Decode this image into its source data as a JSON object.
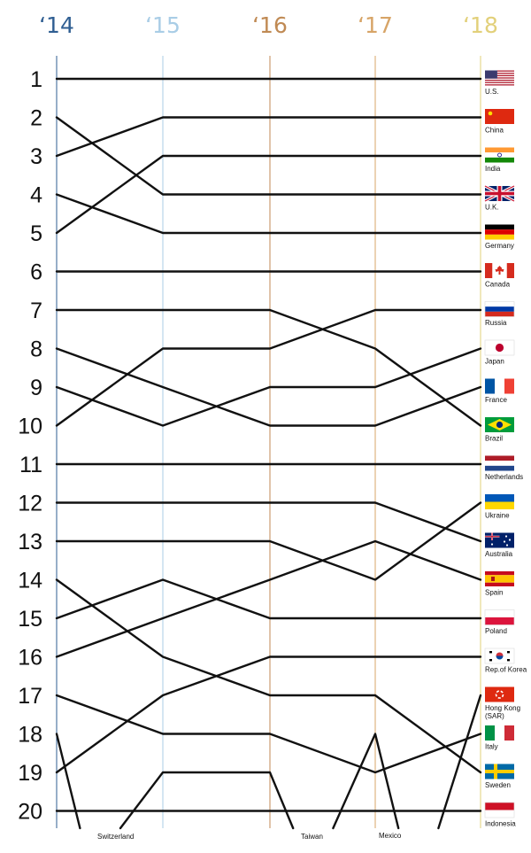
{
  "chart_data": {
    "type": "line",
    "subtype": "bump",
    "title": "",
    "xlabel": "",
    "ylabel": "",
    "x": [
      "2014",
      "2015",
      "2016",
      "2017",
      "2018"
    ],
    "year_labels": [
      "‘14",
      "‘15",
      "‘16",
      "‘17",
      "‘18"
    ],
    "year_colors": [
      "#2f5e92",
      "#a9cde6",
      "#c08a54",
      "#d7a467",
      "#e2d07a"
    ],
    "y_ticks": [
      1,
      2,
      3,
      4,
      5,
      6,
      7,
      8,
      9,
      10,
      11,
      12,
      13,
      14,
      15,
      16,
      17,
      18,
      19,
      20
    ],
    "ylim": [
      1,
      20
    ],
    "y_reversed": true,
    "grid": false,
    "series": [
      {
        "name": "U.S.",
        "flag": "us",
        "values": [
          1,
          1,
          1,
          1,
          1
        ]
      },
      {
        "name": "China",
        "flag": "china",
        "values": [
          3,
          2,
          2,
          2,
          2
        ]
      },
      {
        "name": "India",
        "flag": "india",
        "values": [
          5,
          3,
          3,
          3,
          3
        ]
      },
      {
        "name": "U.K.",
        "flag": "uk",
        "values": [
          2,
          4,
          4,
          4,
          4
        ]
      },
      {
        "name": "Germany",
        "flag": "germany",
        "values": [
          4,
          5,
          5,
          5,
          5
        ]
      },
      {
        "name": "Canada",
        "flag": "canada",
        "values": [
          6,
          6,
          6,
          6,
          6
        ]
      },
      {
        "name": "Brazil",
        "flag": "brazil",
        "values": [
          7,
          7,
          7,
          8,
          10
        ]
      },
      {
        "name": "Japan",
        "flag": "japan",
        "values": [
          9,
          10,
          9,
          9,
          8
        ]
      },
      {
        "name": "Russia",
        "flag": "russia",
        "values": [
          10,
          8,
          8,
          7,
          7
        ]
      },
      {
        "name": "France",
        "flag": "france",
        "values": [
          8,
          9,
          10,
          10,
          9
        ]
      },
      {
        "name": "Netherlands",
        "flag": "netherlands",
        "values": [
          11,
          11,
          11,
          11,
          11
        ]
      },
      {
        "name": "Spain",
        "flag": "spain",
        "values": [
          16,
          15,
          14,
          13,
          14
        ]
      },
      {
        "name": "Australia",
        "flag": "australia",
        "values": [
          12,
          12,
          12,
          12,
          13
        ]
      },
      {
        "name": "Ukraine",
        "flag": "ukraine",
        "values": [
          13,
          13,
          13,
          14,
          12
        ]
      },
      {
        "name": "Poland",
        "flag": "poland",
        "values": [
          15,
          14,
          15,
          15,
          15
        ]
      },
      {
        "name": "Rep.of Korea",
        "flag": "korea",
        "values": [
          19,
          17,
          16,
          16,
          16
        ]
      },
      {
        "name": "Hong Kong (SAR)",
        "flag": "hongkong",
        "values": [
          null,
          null,
          null,
          null,
          17
        ]
      },
      {
        "name": "Italy",
        "flag": "italy",
        "values": [
          17,
          18,
          18,
          19,
          18
        ]
      },
      {
        "name": "Sweden",
        "flag": "sweden",
        "values": [
          14,
          16,
          17,
          17,
          19
        ]
      },
      {
        "name": "Indonesia",
        "flag": "indonesia",
        "values": [
          20,
          20,
          20,
          20,
          20
        ]
      },
      {
        "name": "Switzerland",
        "values": [
          18,
          null,
          null,
          null,
          null
        ]
      },
      {
        "name": "Taiwan",
        "values": [
          null,
          19,
          19,
          null,
          null
        ]
      },
      {
        "name": "Mexico",
        "values": [
          null,
          null,
          null,
          18,
          null
        ]
      }
    ],
    "dropouts": [
      {
        "name": "Switzerland",
        "label": "Switzerland"
      },
      {
        "name": "Taiwan",
        "label": "Taiwan"
      },
      {
        "name": "Mexico",
        "label": "Mexico"
      }
    ]
  }
}
